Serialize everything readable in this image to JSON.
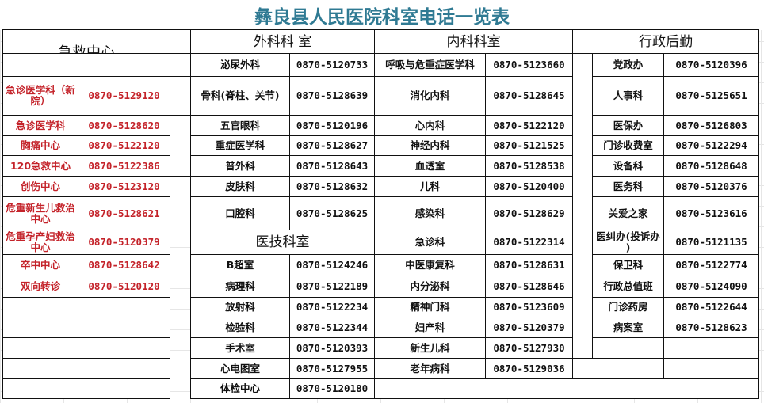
{
  "title": "彝良县人民医院科室电话一览表",
  "colors": {
    "title": "#2f7a93",
    "emergency_text": "#c4232a"
  },
  "headers": {
    "emergency": "急救中心",
    "surgery": "外科科 室",
    "internal": "内科科室",
    "admin": "行政后勤",
    "medtech": "医技科室"
  },
  "emergency": [
    {
      "name": "急诊医学科（新院）",
      "phone": "0870-5129120"
    },
    {
      "name": "急诊医学科",
      "phone": "0870-5128620"
    },
    {
      "name": "胸痛中心",
      "phone": "0870-5122120"
    },
    {
      "name": "120急救中心",
      "phone": "0870-5122386"
    },
    {
      "name": "创伤中心",
      "phone": "0870-5123120"
    },
    {
      "name": "危重新生儿救治中心",
      "phone": "0870-5128621"
    },
    {
      "name": "危重孕产妇救治中心",
      "phone": "0870-5120379"
    },
    {
      "name": "卒中中心",
      "phone": "0870-5128642"
    },
    {
      "name": "双向转诊",
      "phone": "0870-5120120"
    }
  ],
  "surgery": [
    {
      "name": "泌尿外科",
      "phone": "0870-5120733"
    },
    {
      "name": "骨科(脊柱、关节)",
      "phone": "0870-5128639"
    },
    {
      "name": "五官眼科",
      "phone": "0870-5120196"
    },
    {
      "name": "重症医学科",
      "phone": "0870-5128627"
    },
    {
      "name": "普外科",
      "phone": "0870-5128643"
    },
    {
      "name": "皮肤科",
      "phone": "0870-5128632"
    },
    {
      "name": "口腔科",
      "phone": "0870-5128625"
    }
  ],
  "medtech": [
    {
      "name": "B超室",
      "phone": "0870-5124246"
    },
    {
      "name": "病理科",
      "phone": "0870-5122189"
    },
    {
      "name": "放射科",
      "phone": "0870-5122234"
    },
    {
      "name": "检验科",
      "phone": "0870-5122344"
    },
    {
      "name": "手术室",
      "phone": "0870-5120393"
    },
    {
      "name": "心电图室",
      "phone": "0870-5127955"
    },
    {
      "name": "体检中心",
      "phone": "0870-5120180"
    }
  ],
  "internal": [
    {
      "name": "呼吸与危重症医学科",
      "phone": "0870-5123660"
    },
    {
      "name": "消化内科",
      "phone": "0870-5128645"
    },
    {
      "name": "心内科",
      "phone": "0870-5122120"
    },
    {
      "name": "神经内科",
      "phone": "0870-5121525"
    },
    {
      "name": "血透室",
      "phone": "0870-5128538"
    },
    {
      "name": "儿科",
      "phone": "0870-5120400"
    },
    {
      "name": "感染科",
      "phone": "0870-5128629"
    },
    {
      "name": "急诊科",
      "phone": "0870-5122314"
    },
    {
      "name": "中医康复科",
      "phone": "0870-5128631"
    },
    {
      "name": "内分泌科",
      "phone": "0870-5128646"
    },
    {
      "name": "精神门科",
      "phone": "0870-5123609"
    },
    {
      "name": "妇产科",
      "phone": "0870-5120379"
    },
    {
      "name": "新生儿科",
      "phone": "0870-5127930"
    },
    {
      "name": "老年病科",
      "phone": "0870-5129036"
    }
  ],
  "admin": [
    {
      "name": "党政办",
      "phone": "0870-5120396"
    },
    {
      "name": "人事科",
      "phone": "0870-5125651"
    },
    {
      "name": "医保办",
      "phone": "0870-5126803"
    },
    {
      "name": "门诊收费室",
      "phone": "0870-5122294"
    },
    {
      "name": "设备科",
      "phone": "0870-5128648"
    },
    {
      "name": "医务科",
      "phone": "0870-5120376"
    },
    {
      "name": "关爱之家",
      "phone": "0870-5123616"
    },
    {
      "name": "医纠办(投诉办 )",
      "phone": "0870-5121135"
    },
    {
      "name": "保卫科",
      "phone": "0870-5122774"
    },
    {
      "name": "行政总值班",
      "phone": "0870-5124090"
    },
    {
      "name": "门诊药房",
      "phone": "0870-5122644"
    },
    {
      "name": "病案室",
      "phone": "0870-5128623"
    }
  ]
}
